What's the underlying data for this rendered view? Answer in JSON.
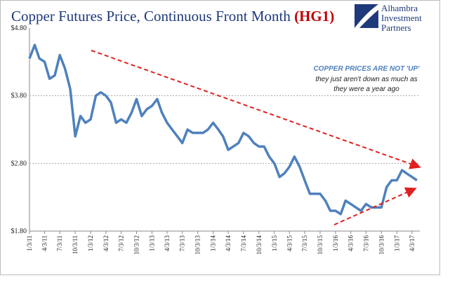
{
  "chart_data": {
    "type": "line",
    "title": "Copper Futures Price, Continuous Front Month",
    "title_symbol": "(HG1)",
    "logo": [
      "Alhambra",
      "Investment",
      "Partners"
    ],
    "annotation_heading": "COPPER PRICES ARE NOT 'UP'",
    "annotation_lines": [
      "they just aren't down as much as",
      "they were a year ago"
    ],
    "x": [
      "2011-01-03",
      "2011-02-03",
      "2011-03-03",
      "2011-04-03",
      "2011-05-03",
      "2011-06-03",
      "2011-07-03",
      "2011-08-03",
      "2011-09-03",
      "2011-10-03",
      "2011-11-03",
      "2011-12-03",
      "2012-01-03",
      "2012-02-03",
      "2012-03-03",
      "2012-04-03",
      "2012-05-03",
      "2012-06-03",
      "2012-07-03",
      "2012-08-03",
      "2012-09-03",
      "2012-10-03",
      "2012-11-03",
      "2012-12-03",
      "2013-01-03",
      "2013-02-03",
      "2013-03-03",
      "2013-04-03",
      "2013-05-03",
      "2013-06-03",
      "2013-07-03",
      "2013-08-03",
      "2013-09-03",
      "2013-10-03",
      "2013-11-03",
      "2013-12-03",
      "2014-01-03",
      "2014-02-03",
      "2014-03-03",
      "2014-04-03",
      "2014-05-03",
      "2014-06-03",
      "2014-07-03",
      "2014-08-03",
      "2014-09-03",
      "2014-10-03",
      "2014-11-03",
      "2014-12-03",
      "2015-01-03",
      "2015-02-03",
      "2015-03-03",
      "2015-04-03",
      "2015-05-03",
      "2015-06-03",
      "2015-07-03",
      "2015-08-03",
      "2015-09-03",
      "2015-10-03",
      "2015-11-03",
      "2015-12-03",
      "2016-01-03",
      "2016-02-03",
      "2016-03-03",
      "2016-04-03",
      "2016-05-03",
      "2016-06-03",
      "2016-07-03",
      "2016-08-03",
      "2016-09-03",
      "2016-10-03",
      "2016-11-03",
      "2016-12-03",
      "2017-01-03",
      "2017-02-03",
      "2017-03-03",
      "2017-04-03",
      "2017-05-03"
    ],
    "series": [
      {
        "name": "HG1",
        "color": "#4f81bd",
        "values": [
          4.35,
          4.55,
          4.35,
          4.3,
          4.05,
          4.1,
          4.4,
          4.2,
          3.9,
          3.2,
          3.5,
          3.4,
          3.45,
          3.8,
          3.85,
          3.8,
          3.7,
          3.4,
          3.45,
          3.4,
          3.55,
          3.75,
          3.5,
          3.6,
          3.65,
          3.75,
          3.55,
          3.4,
          3.3,
          3.2,
          3.1,
          3.3,
          3.25,
          3.25,
          3.25,
          3.3,
          3.4,
          3.3,
          3.2,
          3.0,
          3.05,
          3.1,
          3.25,
          3.2,
          3.1,
          3.05,
          3.05,
          2.9,
          2.8,
          2.6,
          2.65,
          2.75,
          2.9,
          2.75,
          2.55,
          2.35,
          2.35,
          2.35,
          2.25,
          2.1,
          2.1,
          2.05,
          2.25,
          2.2,
          2.15,
          2.1,
          2.2,
          2.15,
          2.15,
          2.15,
          2.45,
          2.55,
          2.55,
          2.7,
          2.65,
          2.6,
          2.55
        ]
      }
    ],
    "xlim": [
      "2011-01-03",
      "2017-05-20"
    ],
    "xticks": [
      {
        "value": "2011-01-03",
        "label": "1/3/11"
      },
      {
        "value": "2011-04-03",
        "label": "4/3/11"
      },
      {
        "value": "2011-07-03",
        "label": "7/3/11"
      },
      {
        "value": "2011-10-03",
        "label": "10/3/11"
      },
      {
        "value": "2012-01-03",
        "label": "1/3/12"
      },
      {
        "value": "2012-04-03",
        "label": "4/3/12"
      },
      {
        "value": "2012-07-03",
        "label": "7/3/12"
      },
      {
        "value": "2012-10-03",
        "label": "10/3/12"
      },
      {
        "value": "2013-01-03",
        "label": "1/3/13"
      },
      {
        "value": "2013-04-03",
        "label": "4/3/13"
      },
      {
        "value": "2013-07-03",
        "label": "7/3/13"
      },
      {
        "value": "2013-10-03",
        "label": "10/3/13"
      },
      {
        "value": "2014-01-03",
        "label": "1/3/14"
      },
      {
        "value": "2014-04-03",
        "label": "4/3/14"
      },
      {
        "value": "2014-07-03",
        "label": "7/3/14"
      },
      {
        "value": "2014-10-03",
        "label": "10/3/14"
      },
      {
        "value": "2015-01-03",
        "label": "1/3/15"
      },
      {
        "value": "2015-04-03",
        "label": "4/3/15"
      },
      {
        "value": "2015-07-03",
        "label": "7/3/15"
      },
      {
        "value": "2015-10-03",
        "label": "10/3/15"
      },
      {
        "value": "2016-01-03",
        "label": "1/3/16"
      },
      {
        "value": "2016-04-03",
        "label": "4/3/16"
      },
      {
        "value": "2016-07-03",
        "label": "7/3/16"
      },
      {
        "value": "2016-10-03",
        "label": "10/3/16"
      },
      {
        "value": "2017-01-03",
        "label": "1/3/17"
      },
      {
        "value": "2017-04-03",
        "label": "4/3/17"
      }
    ],
    "ylim": [
      1.8,
      4.8
    ],
    "yticks": [
      {
        "value": 1.8,
        "label": "$1.80"
      },
      {
        "value": 2.8,
        "label": "$2.80"
      },
      {
        "value": 3.8,
        "label": "$3.80"
      },
      {
        "value": 4.8,
        "label": "$4.80"
      }
    ],
    "grid": true
  }
}
